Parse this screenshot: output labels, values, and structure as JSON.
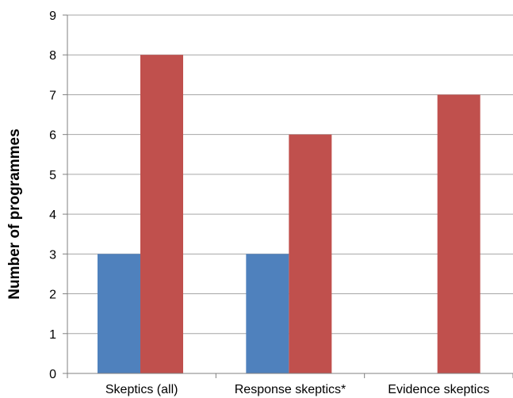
{
  "chart_data": {
    "type": "bar",
    "title": "",
    "xlabel": "",
    "ylabel": "Number of programmes",
    "categories": [
      "Skeptics (all)",
      "Response skeptics*",
      "Evidence skeptics"
    ],
    "series": [
      {
        "values": [
          3,
          3,
          0
        ],
        "color": "#4f81bd"
      },
      {
        "values": [
          8,
          6,
          7
        ],
        "color": "#c0504d"
      }
    ],
    "ylim": [
      0,
      9
    ],
    "yticks": [
      0,
      1,
      2,
      3,
      4,
      5,
      6,
      7,
      8,
      9
    ],
    "grid": true,
    "legend": "none",
    "colors": {
      "gridline": "#a6a6a6",
      "axis": "#808080",
      "text": "#000000"
    }
  }
}
